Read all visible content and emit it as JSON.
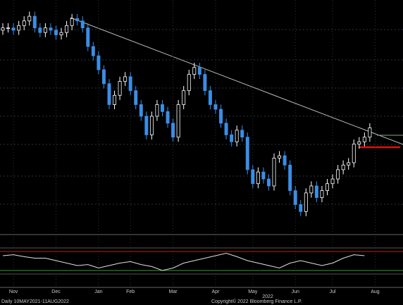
{
  "chart_data": {
    "type": "candlestick",
    "footer_left": "Daily 10MAY2021-11AUG2022",
    "footer_right": "Copyright© 2022 Bloomberg Finance L.P.",
    "year_label": "2022",
    "xlim": [
      0,
      71
    ],
    "ylim": [
      0,
      100
    ],
    "xticks": [
      {
        "value": 2,
        "label": "Nov"
      },
      {
        "value": 10,
        "label": "Dec"
      },
      {
        "value": 18,
        "label": "Jan"
      },
      {
        "value": 24,
        "label": "Feb"
      },
      {
        "value": 32,
        "label": "Mar"
      },
      {
        "value": 40,
        "label": "Apr"
      },
      {
        "value": 47,
        "label": "May"
      },
      {
        "value": 55,
        "label": "Jun"
      },
      {
        "value": 62,
        "label": "Jul"
      },
      {
        "value": 70,
        "label": "Aug"
      }
    ],
    "up_color": "#ffffff",
    "down_color": "#3a8ee6",
    "open": [
      87,
      88,
      88,
      87,
      89,
      91,
      93,
      88,
      86,
      88,
      87,
      85,
      86,
      89,
      92,
      91,
      88,
      80,
      76,
      70,
      64,
      55,
      59,
      65,
      67,
      61,
      55,
      50,
      42,
      50,
      55,
      52,
      47,
      41,
      55,
      61,
      68,
      71,
      68,
      61,
      55,
      53,
      47,
      42,
      39,
      44,
      41,
      27,
      21,
      26,
      23,
      20,
      32,
      33,
      29,
      18,
      12,
      9,
      17,
      20,
      15,
      18,
      21,
      23,
      27,
      29,
      30,
      38,
      39,
      41
    ],
    "high": [
      90,
      90,
      90,
      91,
      93,
      95,
      95,
      90,
      90,
      90,
      89,
      88,
      91,
      94,
      94,
      93,
      90,
      82,
      78,
      72,
      66,
      61,
      67,
      69,
      69,
      63,
      57,
      52,
      52,
      57,
      57,
      54,
      49,
      57,
      63,
      70,
      73,
      73,
      70,
      63,
      57,
      55,
      49,
      44,
      46,
      46,
      43,
      29,
      28,
      28,
      25,
      34,
      35,
      35,
      31,
      20,
      14,
      19,
      22,
      22,
      20,
      23,
      25,
      29,
      31,
      32,
      40,
      41,
      43,
      47
    ],
    "low": [
      85,
      86,
      85,
      85,
      87,
      89,
      86,
      84,
      84,
      85,
      83,
      83,
      84,
      87,
      89,
      86,
      78,
      74,
      68,
      62,
      53,
      53,
      57,
      63,
      59,
      53,
      48,
      40,
      40,
      48,
      50,
      45,
      39,
      39,
      53,
      59,
      66,
      66,
      59,
      53,
      51,
      45,
      40,
      37,
      37,
      39,
      25,
      19,
      19,
      21,
      18,
      18,
      30,
      27,
      16,
      10,
      7,
      7,
      15,
      13,
      13,
      16,
      19,
      21,
      25,
      27,
      28,
      36,
      37,
      39
    ],
    "close": [
      88,
      88,
      87,
      89,
      91,
      93,
      88,
      86,
      88,
      87,
      85,
      86,
      89,
      92,
      91,
      88,
      80,
      76,
      70,
      64,
      55,
      59,
      65,
      67,
      61,
      55,
      50,
      42,
      50,
      55,
      52,
      47,
      41,
      55,
      61,
      68,
      71,
      68,
      61,
      55,
      53,
      47,
      42,
      39,
      44,
      41,
      27,
      21,
      26,
      23,
      20,
      32,
      33,
      29,
      18,
      12,
      9,
      17,
      20,
      15,
      18,
      21,
      23,
      27,
      29,
      30,
      38,
      39,
      41,
      45
    ],
    "rsi": {
      "color": "#e0e0e0",
      "ylim": [
        0,
        100
      ],
      "x": [
        0,
        2,
        4,
        6,
        8,
        10,
        12,
        14,
        16,
        18,
        20,
        22,
        24,
        26,
        28,
        30,
        32,
        34,
        36,
        38,
        40,
        42,
        44,
        46,
        48,
        50,
        52,
        54,
        56,
        58,
        60,
        62,
        64,
        66,
        68
      ],
      "values": [
        60,
        62,
        58,
        55,
        55,
        50,
        45,
        40,
        42,
        35,
        40,
        45,
        48,
        42,
        38,
        30,
        35,
        45,
        50,
        55,
        60,
        65,
        58,
        50,
        45,
        40,
        35,
        45,
        50,
        45,
        40,
        45,
        55,
        62,
        60
      ]
    }
  }
}
